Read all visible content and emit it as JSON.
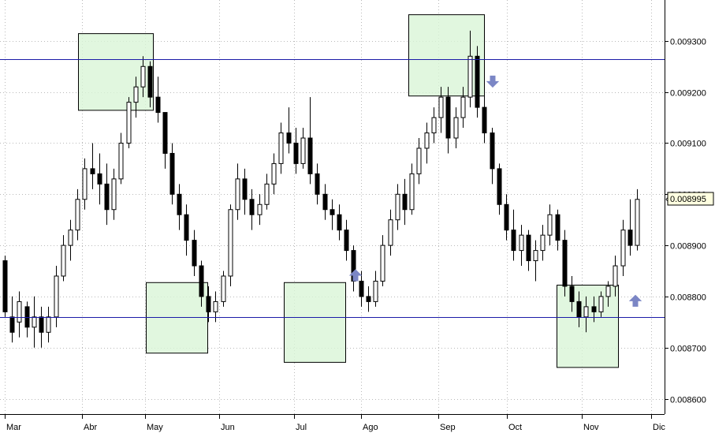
{
  "chart_data": {
    "type": "candlestick",
    "x_axis": {
      "type": "month",
      "tick_labels": [
        "Mar",
        "Abr",
        "May",
        "Jun",
        "Jul",
        "Ago",
        "Sep",
        "Oct",
        "Nov",
        "Dic"
      ]
    },
    "y_axis": {
      "position": "right",
      "range": [
        0.00857,
        0.00938
      ],
      "tick_labels": [
        "0.008600",
        "0.008700",
        "0.008800",
        "0.008900",
        "0.009000",
        "0.009100",
        "0.009200",
        "0.009300"
      ],
      "tick_values": [
        0.0086,
        0.0087,
        0.0088,
        0.0089,
        0.009,
        0.0091,
        0.0092,
        0.0093
      ]
    },
    "grid": "dotted",
    "current_price": {
      "value": 0.008995,
      "label": "0.008995"
    },
    "horizontal_lines": [
      {
        "value": 0.009265,
        "kind": "resistance"
      },
      {
        "value": 0.00876,
        "kind": "support"
      }
    ],
    "highlight_boxes": [
      {
        "from": "Abr",
        "price_low": 0.009165,
        "price_high": 0.009315
      },
      {
        "from": "May",
        "price_low": 0.00869,
        "price_high": 0.008828
      },
      {
        "from": "Jul",
        "price_low": 0.008672,
        "price_high": 0.008828
      },
      {
        "from": "Ago",
        "price_low": 0.009193,
        "price_high": 0.009352
      },
      {
        "from": "Nov",
        "price_low": 0.008662,
        "price_high": 0.008823
      }
    ],
    "arrows": [
      {
        "direction": "up",
        "after": "Jul",
        "price": 0.00884
      },
      {
        "direction": "down",
        "after": "Sep",
        "price": 0.009222
      },
      {
        "direction": "up",
        "after": "Nov",
        "price": 0.00879
      }
    ],
    "series": [
      {
        "date": "Mar 1",
        "open": 0.00887,
        "high": 0.00888,
        "low": 0.00876,
        "close": 0.00877
      },
      {
        "date": "Mar 3",
        "open": 0.00876,
        "high": 0.0088,
        "low": 0.00871,
        "close": 0.00873
      },
      {
        "date": "Mar 5",
        "open": 0.00875,
        "high": 0.00881,
        "low": 0.00872,
        "close": 0.00879
      },
      {
        "date": "Mar 7",
        "open": 0.00878,
        "high": 0.00879,
        "low": 0.00872,
        "close": 0.00874
      },
      {
        "date": "Mar 9",
        "open": 0.00874,
        "high": 0.0088,
        "low": 0.0087,
        "close": 0.00876
      },
      {
        "date": "Mar 11",
        "open": 0.00876,
        "high": 0.00878,
        "low": 0.0087,
        "close": 0.00873
      },
      {
        "date": "Mar 13",
        "open": 0.00873,
        "high": 0.00878,
        "low": 0.00871,
        "close": 0.00876
      },
      {
        "date": "Mar 16",
        "open": 0.00876,
        "high": 0.00886,
        "low": 0.00874,
        "close": 0.00884
      },
      {
        "date": "Mar 18",
        "open": 0.00884,
        "high": 0.00892,
        "low": 0.00883,
        "close": 0.0089
      },
      {
        "date": "Mar 20",
        "open": 0.0089,
        "high": 0.00895,
        "low": 0.00887,
        "close": 0.00893
      },
      {
        "date": "Mar 23",
        "open": 0.00893,
        "high": 0.00901,
        "low": 0.00891,
        "close": 0.00899
      },
      {
        "date": "Mar 25",
        "open": 0.00899,
        "high": 0.00907,
        "low": 0.00897,
        "close": 0.00905
      },
      {
        "date": "Mar 27",
        "open": 0.00905,
        "high": 0.0091,
        "low": 0.00901,
        "close": 0.00904
      },
      {
        "date": "Mar 30",
        "open": 0.00904,
        "high": 0.00908,
        "low": 0.00898,
        "close": 0.00902
      },
      {
        "date": "Apr 1",
        "open": 0.00902,
        "high": 0.00906,
        "low": 0.00894,
        "close": 0.00897
      },
      {
        "date": "Apr 3",
        "open": 0.00897,
        "high": 0.00905,
        "low": 0.00895,
        "close": 0.00903
      },
      {
        "date": "Apr 6",
        "open": 0.00903,
        "high": 0.00912,
        "low": 0.00902,
        "close": 0.0091
      },
      {
        "date": "Apr 8",
        "open": 0.0091,
        "high": 0.00919,
        "low": 0.00909,
        "close": 0.00918
      },
      {
        "date": "Apr 10",
        "open": 0.00918,
        "high": 0.00923,
        "low": 0.00915,
        "close": 0.00921
      },
      {
        "date": "Apr 13",
        "open": 0.00921,
        "high": 0.00927,
        "low": 0.00919,
        "close": 0.00925
      },
      {
        "date": "Apr 15",
        "open": 0.00925,
        "high": 0.00926,
        "low": 0.00917,
        "close": 0.00919
      },
      {
        "date": "Apr 17",
        "open": 0.00919,
        "high": 0.00923,
        "low": 0.00914,
        "close": 0.00916
      },
      {
        "date": "Apr 20",
        "open": 0.00916,
        "high": 0.00916,
        "low": 0.00905,
        "close": 0.00908
      },
      {
        "date": "Apr 22",
        "open": 0.00908,
        "high": 0.0091,
        "low": 0.00898,
        "close": 0.009
      },
      {
        "date": "Apr 24",
        "open": 0.009,
        "high": 0.00902,
        "low": 0.00893,
        "close": 0.00896
      },
      {
        "date": "Apr 27",
        "open": 0.00896,
        "high": 0.00898,
        "low": 0.00888,
        "close": 0.00891
      },
      {
        "date": "Apr 29",
        "open": 0.00891,
        "high": 0.00893,
        "low": 0.00884,
        "close": 0.00886
      },
      {
        "date": "May 1",
        "open": 0.00886,
        "high": 0.00887,
        "low": 0.00878,
        "close": 0.0088
      },
      {
        "date": "May 4",
        "open": 0.0088,
        "high": 0.00882,
        "low": 0.00875,
        "close": 0.00877
      },
      {
        "date": "May 6",
        "open": 0.00877,
        "high": 0.00881,
        "low": 0.00875,
        "close": 0.00879
      },
      {
        "date": "May 8",
        "open": 0.00879,
        "high": 0.00885,
        "low": 0.00878,
        "close": 0.00884
      },
      {
        "date": "May 11",
        "open": 0.00884,
        "high": 0.00898,
        "low": 0.00882,
        "close": 0.00897
      },
      {
        "date": "May 13",
        "open": 0.00897,
        "high": 0.00906,
        "low": 0.00895,
        "close": 0.00903
      },
      {
        "date": "May 15",
        "open": 0.00903,
        "high": 0.00905,
        "low": 0.00896,
        "close": 0.00899
      },
      {
        "date": "May 18",
        "open": 0.00899,
        "high": 0.00901,
        "low": 0.00893,
        "close": 0.00896
      },
      {
        "date": "May 20",
        "open": 0.00896,
        "high": 0.009,
        "low": 0.00894,
        "close": 0.00898
      },
      {
        "date": "May 22",
        "open": 0.00898,
        "high": 0.00904,
        "low": 0.00897,
        "close": 0.00902
      },
      {
        "date": "May 25",
        "open": 0.00902,
        "high": 0.00908,
        "low": 0.009,
        "close": 0.00906
      },
      {
        "date": "May 27",
        "open": 0.00906,
        "high": 0.00914,
        "low": 0.00904,
        "close": 0.00912
      },
      {
        "date": "May 29",
        "open": 0.00912,
        "high": 0.00917,
        "low": 0.00908,
        "close": 0.0091
      },
      {
        "date": "Jun 1",
        "open": 0.0091,
        "high": 0.00913,
        "low": 0.00904,
        "close": 0.00906
      },
      {
        "date": "Jun 3",
        "open": 0.00906,
        "high": 0.00913,
        "low": 0.00905,
        "close": 0.00911
      },
      {
        "date": "Jun 5",
        "open": 0.00911,
        "high": 0.00919,
        "low": 0.00902,
        "close": 0.00904
      },
      {
        "date": "Jun 8",
        "open": 0.00904,
        "high": 0.00906,
        "low": 0.00898,
        "close": 0.009
      },
      {
        "date": "Jun 10",
        "open": 0.009,
        "high": 0.00902,
        "low": 0.00895,
        "close": 0.00897
      },
      {
        "date": "Jun 12",
        "open": 0.00897,
        "high": 0.00899,
        "low": 0.00893,
        "close": 0.00896
      },
      {
        "date": "Jun 15",
        "open": 0.00896,
        "high": 0.00898,
        "low": 0.00891,
        "close": 0.00893
      },
      {
        "date": "Jun 17",
        "open": 0.00893,
        "high": 0.00895,
        "low": 0.00887,
        "close": 0.00889
      },
      {
        "date": "Jun 19",
        "open": 0.00889,
        "high": 0.0089,
        "low": 0.00881,
        "close": 0.00883
      },
      {
        "date": "Jun 22",
        "open": 0.00883,
        "high": 0.00885,
        "low": 0.00878,
        "close": 0.0088
      },
      {
        "date": "Jun 24",
        "open": 0.0088,
        "high": 0.00882,
        "low": 0.00877,
        "close": 0.00879
      },
      {
        "date": "Jun 26",
        "open": 0.00879,
        "high": 0.00885,
        "low": 0.00878,
        "close": 0.00883
      },
      {
        "date": "Jun 29",
        "open": 0.00883,
        "high": 0.00892,
        "low": 0.00882,
        "close": 0.0089
      },
      {
        "date": "Jul 1",
        "open": 0.0089,
        "high": 0.00897,
        "low": 0.00888,
        "close": 0.00895
      },
      {
        "date": "Jul 3",
        "open": 0.00895,
        "high": 0.00902,
        "low": 0.00893,
        "close": 0.009
      },
      {
        "date": "Jul 6",
        "open": 0.009,
        "high": 0.00903,
        "low": 0.00894,
        "close": 0.00897
      },
      {
        "date": "Jul 8",
        "open": 0.00897,
        "high": 0.00906,
        "low": 0.00896,
        "close": 0.00904
      },
      {
        "date": "Jul 10",
        "open": 0.00904,
        "high": 0.00911,
        "low": 0.00902,
        "close": 0.00909
      },
      {
        "date": "Jul 13",
        "open": 0.00909,
        "high": 0.00914,
        "low": 0.00906,
        "close": 0.00912
      },
      {
        "date": "Jul 15",
        "open": 0.00912,
        "high": 0.00917,
        "low": 0.0091,
        "close": 0.00915
      },
      {
        "date": "Jul 17",
        "open": 0.00915,
        "high": 0.00921,
        "low": 0.00912,
        "close": 0.00919
      },
      {
        "date": "Jul 20",
        "open": 0.00919,
        "high": 0.00921,
        "low": 0.00908,
        "close": 0.00911
      },
      {
        "date": "Jul 22",
        "open": 0.00911,
        "high": 0.00917,
        "low": 0.00909,
        "close": 0.00915
      },
      {
        "date": "Jul 24",
        "open": 0.00915,
        "high": 0.00921,
        "low": 0.00913,
        "close": 0.00919
      },
      {
        "date": "Jul 27",
        "open": 0.00919,
        "high": 0.00932,
        "low": 0.00917,
        "close": 0.00927
      },
      {
        "date": "Jul 29",
        "open": 0.00927,
        "high": 0.00929,
        "low": 0.00915,
        "close": 0.00917
      },
      {
        "date": "Jul 31",
        "open": 0.00917,
        "high": 0.0092,
        "low": 0.0091,
        "close": 0.00912
      },
      {
        "date": "Aug 3",
        "open": 0.00912,
        "high": 0.00913,
        "low": 0.00902,
        "close": 0.00905
      },
      {
        "date": "Aug 5",
        "open": 0.00905,
        "high": 0.00906,
        "low": 0.00896,
        "close": 0.00898
      },
      {
        "date": "Aug 7",
        "open": 0.00898,
        "high": 0.009,
        "low": 0.00891,
        "close": 0.00893
      },
      {
        "date": "Aug 10",
        "open": 0.00893,
        "high": 0.00897,
        "low": 0.00887,
        "close": 0.00889
      },
      {
        "date": "Aug 12",
        "open": 0.00889,
        "high": 0.00894,
        "low": 0.00886,
        "close": 0.00892
      },
      {
        "date": "Aug 14",
        "open": 0.00892,
        "high": 0.00893,
        "low": 0.00885,
        "close": 0.00887
      },
      {
        "date": "Aug 17",
        "open": 0.00887,
        "high": 0.00891,
        "low": 0.00883,
        "close": 0.00889
      },
      {
        "date": "Aug 19",
        "open": 0.00889,
        "high": 0.00894,
        "low": 0.00887,
        "close": 0.00892
      },
      {
        "date": "Aug 21",
        "open": 0.00892,
        "high": 0.00898,
        "low": 0.0089,
        "close": 0.00896
      },
      {
        "date": "Aug 24",
        "open": 0.00896,
        "high": 0.00897,
        "low": 0.00889,
        "close": 0.00891
      },
      {
        "date": "Aug 26",
        "open": 0.00891,
        "high": 0.00893,
        "low": 0.0088,
        "close": 0.00882
      },
      {
        "date": "Aug 28",
        "open": 0.00882,
        "high": 0.00884,
        "low": 0.00877,
        "close": 0.00879
      },
      {
        "date": "Aug 31",
        "open": 0.00879,
        "high": 0.00881,
        "low": 0.00874,
        "close": 0.00876
      },
      {
        "date": "Sep 2",
        "open": 0.00876,
        "high": 0.0088,
        "low": 0.00873,
        "close": 0.00878
      },
      {
        "date": "Sep 4",
        "open": 0.00878,
        "high": 0.0088,
        "low": 0.00875,
        "close": 0.00877
      },
      {
        "date": "Sep 7",
        "open": 0.00877,
        "high": 0.00881,
        "low": 0.00876,
        "close": 0.0088
      },
      {
        "date": "Sep 9",
        "open": 0.0088,
        "high": 0.00883,
        "low": 0.00878,
        "close": 0.00882
      },
      {
        "date": "Sep 11",
        "open": 0.00882,
        "high": 0.00888,
        "low": 0.0088,
        "close": 0.00886
      },
      {
        "date": "Sep 14",
        "open": 0.00886,
        "high": 0.00895,
        "low": 0.00884,
        "close": 0.00893
      },
      {
        "date": "Sep 16",
        "open": 0.00893,
        "high": 0.00899,
        "low": 0.00888,
        "close": 0.0089
      },
      {
        "date": "Sep 18",
        "open": 0.0089,
        "high": 0.00901,
        "low": 0.00889,
        "close": 0.00899
      }
    ]
  }
}
